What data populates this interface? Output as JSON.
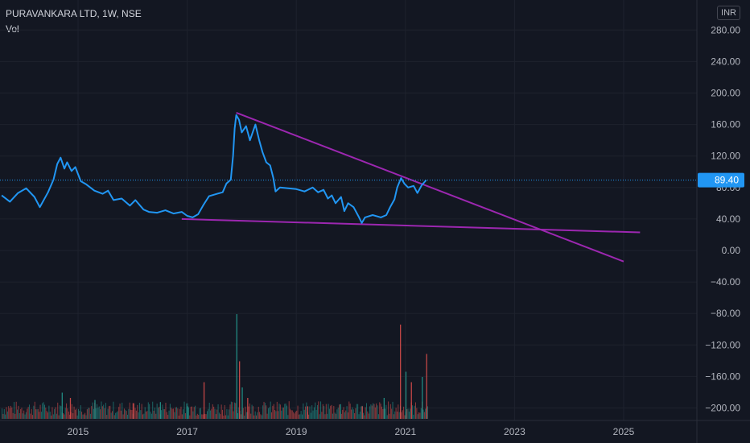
{
  "header": {
    "title": "PURAVANKARA LTD, 1W, NSE",
    "volume_label": "Vol"
  },
  "currency_button": "INR",
  "colors": {
    "background": "#131722",
    "price_line": "#2196f3",
    "trendline": "#9c27b0",
    "volume_up": "#26a69a",
    "volume_down": "#ef5350",
    "last_price_badge": "#2196f3"
  },
  "chart_data": {
    "type": "line",
    "title": "PURAVANKARA LTD, 1W, NSE",
    "y_axis": {
      "range": [
        -210,
        300
      ],
      "ticks": [
        280,
        240,
        200,
        160,
        120,
        80,
        40,
        0,
        -40,
        -80,
        -120,
        -160,
        -200
      ],
      "tick_labels": [
        "280.00",
        "240.00",
        "200.00",
        "160.00",
        "120.00",
        "80.00",
        "40.00",
        "0.00",
        "−40.00",
        "−80.00",
        "−120.00",
        "−160.00",
        "−200.00"
      ],
      "position": "right"
    },
    "x_axis": {
      "range": [
        2013.6,
        2026.0
      ],
      "ticks": [
        2015,
        2017,
        2019,
        2021,
        2023,
        2025
      ],
      "tick_labels": [
        "2015",
        "2017",
        "2019",
        "2021",
        "2023",
        "2025"
      ]
    },
    "last_price": {
      "value": 89.4,
      "label": "89.40"
    },
    "grid": true,
    "series": [
      {
        "name": "price",
        "points": [
          [
            2013.6,
            70
          ],
          [
            2013.75,
            62
          ],
          [
            2013.9,
            73
          ],
          [
            2014.05,
            79
          ],
          [
            2014.2,
            68
          ],
          [
            2014.3,
            55
          ],
          [
            2014.45,
            74
          ],
          [
            2014.55,
            90
          ],
          [
            2014.62,
            110
          ],
          [
            2014.68,
            118
          ],
          [
            2014.75,
            104
          ],
          [
            2014.8,
            112
          ],
          [
            2014.88,
            101
          ],
          [
            2014.95,
            106
          ],
          [
            2015.05,
            88
          ],
          [
            2015.15,
            84
          ],
          [
            2015.3,
            76
          ],
          [
            2015.45,
            72
          ],
          [
            2015.55,
            76
          ],
          [
            2015.65,
            64
          ],
          [
            2015.8,
            66
          ],
          [
            2015.95,
            57
          ],
          [
            2016.05,
            64
          ],
          [
            2016.2,
            52
          ],
          [
            2016.3,
            49
          ],
          [
            2016.45,
            48
          ],
          [
            2016.6,
            51
          ],
          [
            2016.75,
            47
          ],
          [
            2016.9,
            49
          ],
          [
            2017.0,
            44
          ],
          [
            2017.1,
            42
          ],
          [
            2017.2,
            46
          ],
          [
            2017.3,
            58
          ],
          [
            2017.4,
            69
          ],
          [
            2017.55,
            72
          ],
          [
            2017.65,
            74
          ],
          [
            2017.72,
            85
          ],
          [
            2017.8,
            90
          ],
          [
            2017.84,
            120
          ],
          [
            2017.87,
            155
          ],
          [
            2017.9,
            172
          ],
          [
            2017.95,
            166
          ],
          [
            2018.0,
            150
          ],
          [
            2018.08,
            158
          ],
          [
            2018.15,
            140
          ],
          [
            2018.25,
            160
          ],
          [
            2018.32,
            140
          ],
          [
            2018.38,
            125
          ],
          [
            2018.45,
            112
          ],
          [
            2018.52,
            108
          ],
          [
            2018.58,
            92
          ],
          [
            2018.62,
            75
          ],
          [
            2018.7,
            80
          ],
          [
            2018.85,
            79
          ],
          [
            2019.0,
            78
          ],
          [
            2019.15,
            75
          ],
          [
            2019.3,
            80
          ],
          [
            2019.4,
            74
          ],
          [
            2019.5,
            77
          ],
          [
            2019.58,
            66
          ],
          [
            2019.65,
            70
          ],
          [
            2019.72,
            60
          ],
          [
            2019.82,
            68
          ],
          [
            2019.88,
            50
          ],
          [
            2019.95,
            60
          ],
          [
            2020.05,
            55
          ],
          [
            2020.15,
            42
          ],
          [
            2020.2,
            35
          ],
          [
            2020.26,
            42
          ],
          [
            2020.4,
            45
          ],
          [
            2020.55,
            42
          ],
          [
            2020.65,
            45
          ],
          [
            2020.72,
            55
          ],
          [
            2020.8,
            65
          ],
          [
            2020.85,
            80
          ],
          [
            2020.92,
            92
          ],
          [
            2020.98,
            85
          ],
          [
            2021.05,
            80
          ],
          [
            2021.15,
            82
          ],
          [
            2021.22,
            73
          ],
          [
            2021.3,
            83
          ],
          [
            2021.38,
            89.4
          ]
        ]
      }
    ],
    "trendlines": [
      {
        "from": [
          2017.9,
          175
        ],
        "to": [
          2025.0,
          -14
        ]
      },
      {
        "from": [
          2016.9,
          40
        ],
        "to": [
          2025.3,
          23
        ]
      }
    ],
    "volume_series": {
      "description_units": "relative height 0-1",
      "bars": [
        [
          2017.9,
          1.0
        ],
        [
          2017.95,
          0.55
        ],
        [
          2018.0,
          0.3
        ],
        [
          2018.1,
          0.2
        ],
        [
          2017.0,
          0.12
        ],
        [
          2017.3,
          0.35
        ],
        [
          2014.7,
          0.25
        ],
        [
          2014.85,
          0.2
        ],
        [
          2015.3,
          0.18
        ],
        [
          2016.0,
          0.15
        ],
        [
          2016.5,
          0.16
        ],
        [
          2019.2,
          0.12
        ],
        [
          2019.8,
          0.14
        ],
        [
          2020.2,
          0.12
        ],
        [
          2020.6,
          0.2
        ],
        [
          2020.9,
          0.9
        ],
        [
          2021.0,
          0.45
        ],
        [
          2021.1,
          0.35
        ],
        [
          2021.3,
          0.4
        ],
        [
          2021.38,
          0.62
        ]
      ]
    }
  }
}
